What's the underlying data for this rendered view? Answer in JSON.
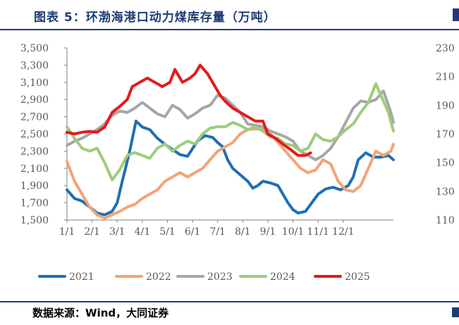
{
  "header": {
    "title": "图表 5：环渤海港口动力煤库存量（万吨）"
  },
  "footer": {
    "source": "数据来源：Wind，大同证券"
  },
  "chart_data": {
    "type": "line",
    "title": "图表 5：环渤海港口动力煤库存量（万吨）",
    "xlabel": "",
    "ylabel": "",
    "x_ticks": [
      "1/1",
      "2/1",
      "3/1",
      "4/1",
      "5/1",
      "6/1",
      "7/1",
      "8/1",
      "9/1",
      "10/1",
      "11/1",
      "12/1"
    ],
    "y_left": {
      "ticks": [
        "1,500",
        "1,700",
        "1,900",
        "2,100",
        "2,300",
        "2,500",
        "2,700",
        "2,900",
        "3,100",
        "3,300",
        "3,500"
      ],
      "lim": [
        1500,
        3500
      ]
    },
    "y_right": {
      "ticks": [
        "110",
        "130",
        "150",
        "170",
        "190",
        "210",
        "230"
      ],
      "lim": [
        110,
        230
      ]
    },
    "grid": false,
    "legend_position": "bottom",
    "series": [
      {
        "name": "2021",
        "axis": "left",
        "color": "#1f6fb4",
        "points": [
          [
            0,
            1850
          ],
          [
            0.3,
            1750
          ],
          [
            0.6,
            1720
          ],
          [
            0.9,
            1650
          ],
          [
            1.2,
            1580
          ],
          [
            1.5,
            1560
          ],
          [
            1.8,
            1600
          ],
          [
            2.0,
            1700
          ],
          [
            2.2,
            1950
          ],
          [
            2.5,
            2300
          ],
          [
            2.75,
            2650
          ],
          [
            3.0,
            2580
          ],
          [
            3.3,
            2550
          ],
          [
            3.6,
            2450
          ],
          [
            3.9,
            2380
          ],
          [
            4.2,
            2320
          ],
          [
            4.5,
            2260
          ],
          [
            4.8,
            2240
          ],
          [
            5.2,
            2420
          ],
          [
            5.5,
            2480
          ],
          [
            5.8,
            2460
          ],
          [
            6.0,
            2400
          ],
          [
            6.2,
            2350
          ],
          [
            6.4,
            2200
          ],
          [
            6.6,
            2100
          ],
          [
            6.8,
            2050
          ],
          [
            7.0,
            2000
          ],
          [
            7.2,
            1950
          ],
          [
            7.4,
            1870
          ],
          [
            7.6,
            1900
          ],
          [
            7.8,
            1950
          ],
          [
            8.1,
            1930
          ],
          [
            8.4,
            1900
          ],
          [
            8.6,
            1800
          ],
          [
            8.8,
            1700
          ],
          [
            9.0,
            1620
          ],
          [
            9.2,
            1580
          ],
          [
            9.5,
            1600
          ],
          [
            9.8,
            1720
          ],
          [
            10.0,
            1800
          ],
          [
            10.3,
            1860
          ],
          [
            10.6,
            1880
          ],
          [
            10.9,
            1850
          ],
          [
            11.2,
            1900
          ],
          [
            11.4,
            2000
          ],
          [
            11.6,
            2200
          ],
          [
            11.9,
            2280
          ],
          [
            12.2,
            2230
          ],
          [
            12.5,
            2230
          ],
          [
            12.8,
            2250
          ],
          [
            13.0,
            2200
          ]
        ]
      },
      {
        "name": "2022",
        "axis": "left",
        "color": "#f4a375",
        "points": [
          [
            0,
            2180
          ],
          [
            0.3,
            1950
          ],
          [
            0.6,
            1800
          ],
          [
            0.9,
            1650
          ],
          [
            1.2,
            1560
          ],
          [
            1.5,
            1520
          ],
          [
            1.8,
            1560
          ],
          [
            2.1,
            1600
          ],
          [
            2.4,
            1650
          ],
          [
            2.7,
            1680
          ],
          [
            3.0,
            1750
          ],
          [
            3.3,
            1800
          ],
          [
            3.6,
            1850
          ],
          [
            3.9,
            1950
          ],
          [
            4.2,
            2000
          ],
          [
            4.5,
            2050
          ],
          [
            4.8,
            2000
          ],
          [
            5.1,
            2050
          ],
          [
            5.4,
            2100
          ],
          [
            5.7,
            2200
          ],
          [
            6.0,
            2300
          ],
          [
            6.3,
            2350
          ],
          [
            6.6,
            2400
          ],
          [
            6.9,
            2500
          ],
          [
            7.2,
            2550
          ],
          [
            7.5,
            2560
          ],
          [
            7.8,
            2550
          ],
          [
            8.1,
            2500
          ],
          [
            8.4,
            2400
          ],
          [
            8.7,
            2300
          ],
          [
            9.0,
            2200
          ],
          [
            9.3,
            2100
          ],
          [
            9.6,
            2050
          ],
          [
            9.9,
            2080
          ],
          [
            10.2,
            2200
          ],
          [
            10.5,
            2150
          ],
          [
            10.8,
            1950
          ],
          [
            11.1,
            1850
          ],
          [
            11.4,
            1830
          ],
          [
            11.7,
            1900
          ],
          [
            12.0,
            2100
          ],
          [
            12.3,
            2300
          ],
          [
            12.6,
            2250
          ],
          [
            12.9,
            2300
          ],
          [
            13.0,
            2380
          ]
        ]
      },
      {
        "name": "2023",
        "axis": "right",
        "color": "#a6a6a6",
        "points": [
          [
            0,
            162
          ],
          [
            0.3,
            165
          ],
          [
            0.6,
            167
          ],
          [
            0.9,
            170
          ],
          [
            1.2,
            173
          ],
          [
            1.5,
            177
          ],
          [
            1.8,
            183
          ],
          [
            2.1,
            186
          ],
          [
            2.4,
            185
          ],
          [
            2.7,
            188
          ],
          [
            3.0,
            192
          ],
          [
            3.3,
            188
          ],
          [
            3.6,
            184
          ],
          [
            3.9,
            182
          ],
          [
            4.2,
            190
          ],
          [
            4.5,
            187
          ],
          [
            4.8,
            181
          ],
          [
            5.1,
            184
          ],
          [
            5.4,
            188
          ],
          [
            5.7,
            190
          ],
          [
            6.0,
            197
          ],
          [
            6.3,
            195
          ],
          [
            6.6,
            190
          ],
          [
            6.9,
            185
          ],
          [
            7.2,
            177
          ],
          [
            7.5,
            176
          ],
          [
            7.8,
            175
          ],
          [
            8.1,
            172
          ],
          [
            8.4,
            170
          ],
          [
            8.7,
            168
          ],
          [
            9.0,
            165
          ],
          [
            9.3,
            158
          ],
          [
            9.6,
            155
          ],
          [
            9.9,
            152
          ],
          [
            10.2,
            155
          ],
          [
            10.5,
            160
          ],
          [
            10.8,
            168
          ],
          [
            11.1,
            178
          ],
          [
            11.4,
            188
          ],
          [
            11.7,
            193
          ],
          [
            12.0,
            192
          ],
          [
            12.3,
            194
          ],
          [
            12.6,
            200
          ],
          [
            12.9,
            185
          ],
          [
            13.0,
            178
          ]
        ]
      },
      {
        "name": "2024",
        "axis": "right",
        "color": "#9dcc7b",
        "points": [
          [
            0,
            175
          ],
          [
            0.3,
            167
          ],
          [
            0.6,
            160
          ],
          [
            0.9,
            158
          ],
          [
            1.2,
            160
          ],
          [
            1.5,
            150
          ],
          [
            1.8,
            138
          ],
          [
            2.1,
            145
          ],
          [
            2.4,
            155
          ],
          [
            2.7,
            157
          ],
          [
            3.0,
            155
          ],
          [
            3.3,
            153
          ],
          [
            3.6,
            160
          ],
          [
            3.9,
            163
          ],
          [
            4.2,
            158
          ],
          [
            4.5,
            162
          ],
          [
            4.8,
            165
          ],
          [
            5.1,
            163
          ],
          [
            5.4,
            170
          ],
          [
            5.7,
            174
          ],
          [
            6.0,
            175
          ],
          [
            6.3,
            175
          ],
          [
            6.6,
            178
          ],
          [
            6.9,
            176
          ],
          [
            7.2,
            173
          ],
          [
            7.5,
            175
          ],
          [
            7.8,
            172
          ],
          [
            8.1,
            168
          ],
          [
            8.4,
            167
          ],
          [
            8.7,
            163
          ],
          [
            9.0,
            162
          ],
          [
            9.3,
            158
          ],
          [
            9.6,
            160
          ],
          [
            9.9,
            170
          ],
          [
            10.2,
            166
          ],
          [
            10.5,
            165
          ],
          [
            10.8,
            168
          ],
          [
            11.1,
            173
          ],
          [
            11.4,
            177
          ],
          [
            11.7,
            185
          ],
          [
            12.0,
            192
          ],
          [
            12.3,
            205
          ],
          [
            12.5,
            197
          ],
          [
            12.8,
            185
          ],
          [
            13.0,
            172
          ]
        ]
      },
      {
        "name": "2025",
        "axis": "left",
        "color": "#e31a1c",
        "points": [
          [
            0,
            2520
          ],
          [
            0.3,
            2500
          ],
          [
            0.6,
            2520
          ],
          [
            0.9,
            2530
          ],
          [
            1.2,
            2520
          ],
          [
            1.5,
            2580
          ],
          [
            1.8,
            2750
          ],
          [
            2.1,
            2820
          ],
          [
            2.4,
            2900
          ],
          [
            2.6,
            3050
          ],
          [
            2.9,
            3100
          ],
          [
            3.2,
            3150
          ],
          [
            3.5,
            3100
          ],
          [
            3.8,
            3050
          ],
          [
            4.1,
            3100
          ],
          [
            4.3,
            3250
          ],
          [
            4.6,
            3100
          ],
          [
            4.9,
            3150
          ],
          [
            5.1,
            3200
          ],
          [
            5.3,
            3300
          ],
          [
            5.6,
            3200
          ],
          [
            5.9,
            3050
          ],
          [
            6.1,
            2950
          ],
          [
            6.3,
            2880
          ],
          [
            6.6,
            2800
          ],
          [
            6.9,
            2750
          ],
          [
            7.2,
            2700
          ],
          [
            7.5,
            2650
          ],
          [
            7.8,
            2650
          ],
          [
            8.0,
            2500
          ],
          [
            8.3,
            2450
          ],
          [
            8.6,
            2380
          ],
          [
            8.9,
            2320
          ],
          [
            9.2,
            2250
          ],
          [
            9.5,
            2250
          ],
          [
            9.7,
            2280
          ]
        ]
      }
    ]
  }
}
